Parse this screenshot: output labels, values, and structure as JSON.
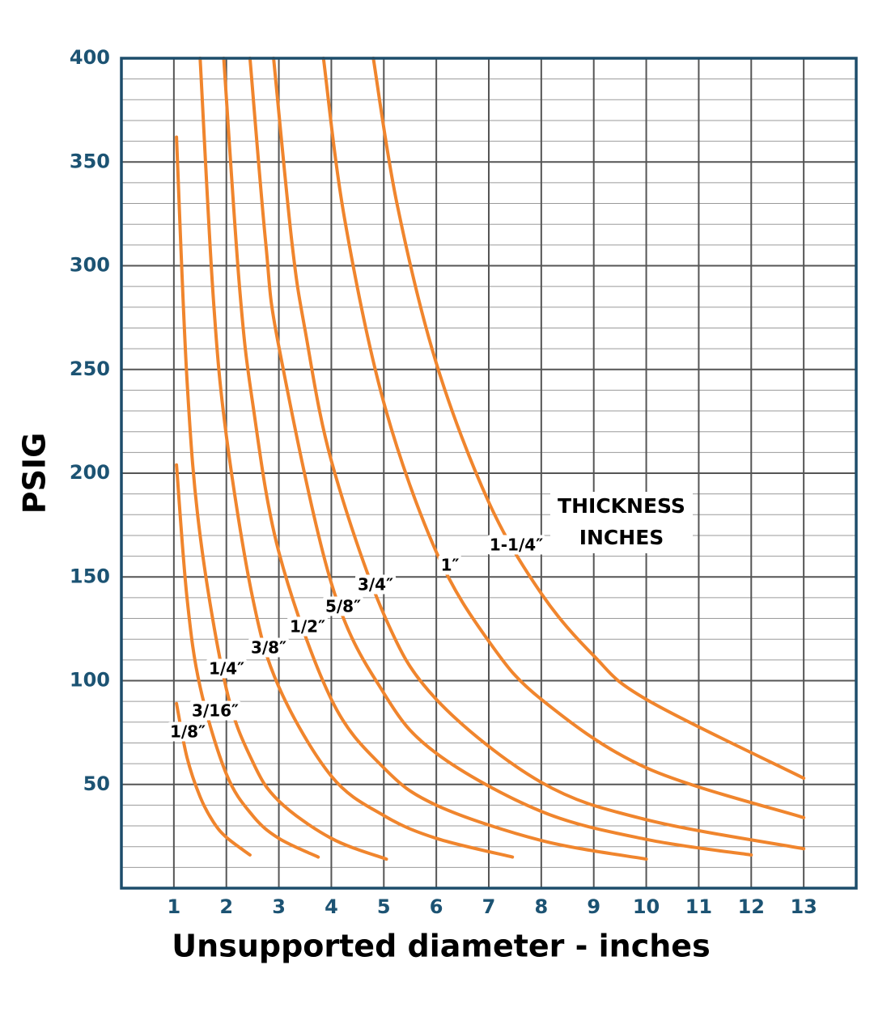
{
  "chart_data": {
    "type": "line",
    "x_label": "Unsupported diameter - inches",
    "y_label": "PSIG",
    "annotation": [
      "THICKNESS",
      "INCHES"
    ],
    "xlim": [
      0,
      14
    ],
    "ylim": [
      0,
      400
    ],
    "xticks": [
      1,
      2,
      3,
      4,
      5,
      6,
      7,
      8,
      9,
      10,
      11,
      12,
      13
    ],
    "yticks": [
      50,
      100,
      150,
      200,
      250,
      300,
      350,
      400
    ],
    "grid": true,
    "minor_grid_step": 10,
    "series": [
      {
        "name": "1/8″",
        "color": "#f0852d",
        "x": [
          1.05,
          1.25,
          1.5,
          1.75,
          2,
          2.45
        ],
        "values": [
          89,
          63,
          44,
          32,
          24.5,
          16
        ]
      },
      {
        "name": "3/16″",
        "color": "#f0852d",
        "x": [
          1.05,
          1.25,
          1.5,
          2,
          2.5,
          3,
          3.75
        ],
        "values": [
          204,
          140,
          97,
          55,
          35,
          24,
          15
        ]
      },
      {
        "name": "1/4″",
        "color": "#f0852d",
        "x": [
          1.05,
          1.25,
          1.5,
          2,
          2.5,
          3,
          4,
          5.05
        ],
        "values": [
          362,
          245,
          170,
          96,
          61,
          42,
          24,
          14
        ]
      },
      {
        "name": "3/8″",
        "color": "#f0852d",
        "x": [
          1.5,
          1.75,
          2,
          2.5,
          3,
          4,
          5,
          6,
          7.45
        ],
        "values": [
          400,
          285,
          218,
          140,
          97,
          54,
          35,
          24,
          15
        ]
      },
      {
        "name": "1/2″",
        "color": "#f0852d",
        "x": [
          1.95,
          2.25,
          2.5,
          3,
          4,
          5,
          6,
          8,
          10
        ],
        "values": [
          400,
          290,
          234,
          162,
          91,
          58,
          40,
          23,
          14
        ]
      },
      {
        "name": "5/8″",
        "color": "#f0852d",
        "x": [
          2.45,
          2.75,
          3,
          4,
          5,
          6,
          8,
          10,
          12
        ],
        "values": [
          400,
          311,
          261,
          147,
          94,
          65,
          37,
          23.5,
          16
        ]
      },
      {
        "name": "3/4″",
        "color": "#f0852d",
        "x": [
          2.9,
          3.25,
          3.5,
          4,
          5,
          6,
          8,
          10,
          13
        ],
        "values": [
          400,
          311,
          269,
          206,
          132,
          91,
          51,
          33,
          19
        ]
      },
      {
        "name": "1″",
        "color": "#f0852d",
        "x": [
          3.85,
          4.25,
          5,
          6,
          7,
          8,
          10,
          13
        ],
        "values": [
          400,
          323,
          234,
          162,
          119,
          91,
          58,
          34
        ]
      },
      {
        "name": "1-1/4″",
        "color": "#f0852d",
        "x": [
          4.8,
          5.25,
          6,
          7,
          8,
          9,
          10,
          13
        ],
        "values": [
          400,
          330,
          253,
          186,
          142,
          112,
          91,
          53
        ]
      }
    ]
  }
}
